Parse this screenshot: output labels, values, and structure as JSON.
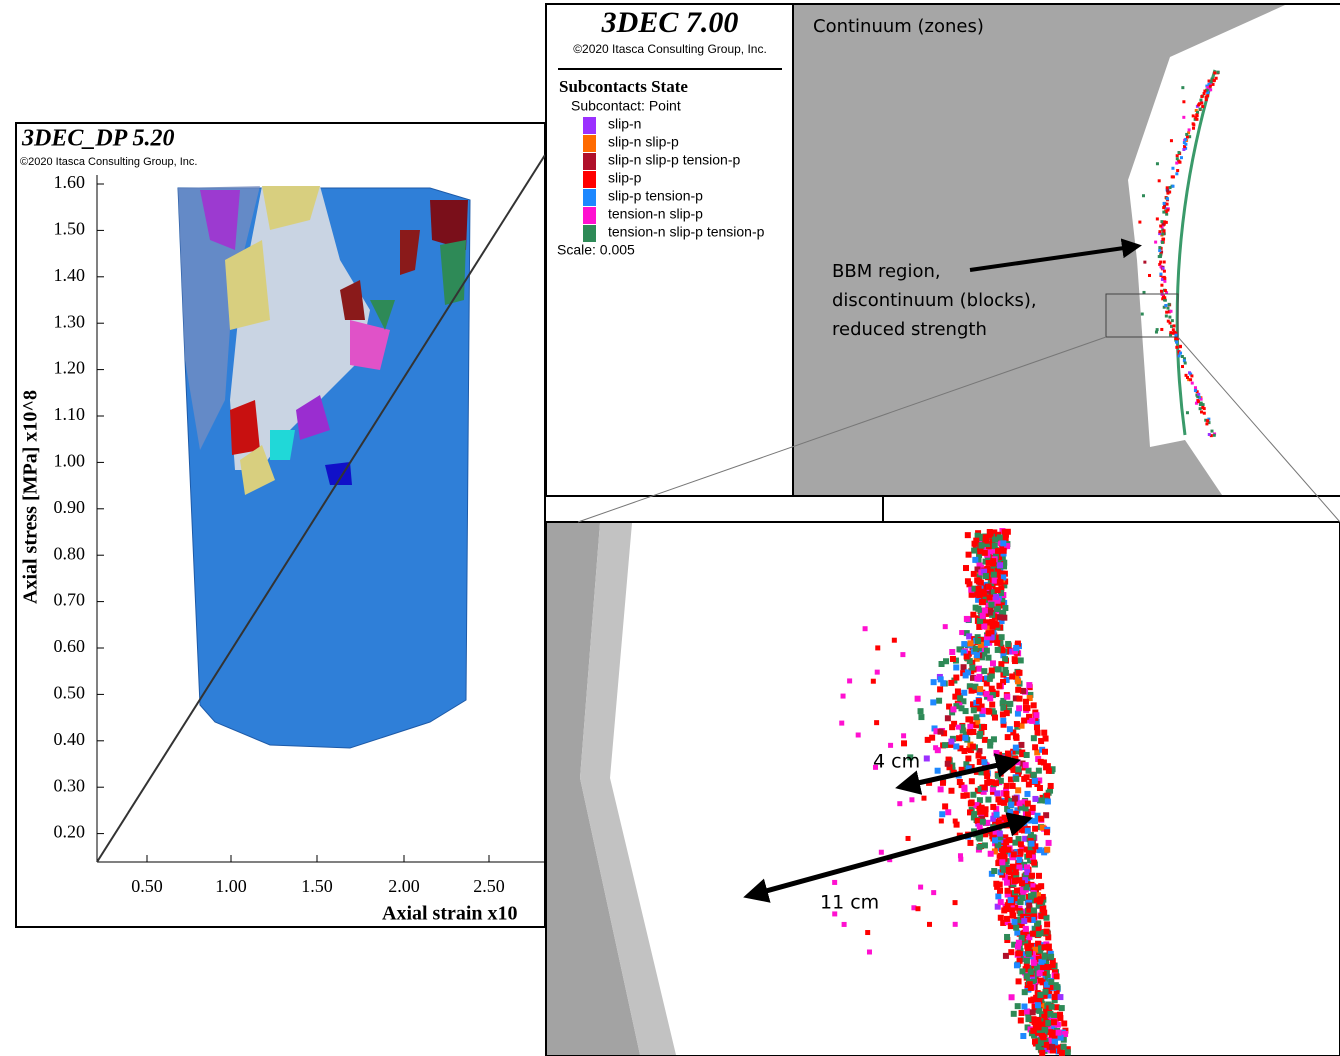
{
  "left_panel": {
    "title": "3DEC_DP 5.20",
    "copyright": "©2020 Itasca Consulting Group, Inc.",
    "y_axis_label": "Axial stress [MPa] x10^8",
    "x_axis_label": "Axial strain x10",
    "y_ticks": [
      "1.60",
      "1.50",
      "1.40",
      "1.30",
      "1.20",
      "1.10",
      "1.00",
      "0.90",
      "0.80",
      "0.70",
      "0.60",
      "0.50",
      "0.40",
      "0.30",
      "0.20"
    ],
    "x_ticks": [
      "0.50",
      "1.00",
      "1.50",
      "2.00",
      "2.50"
    ]
  },
  "top_panel": {
    "title": "3DEC 7.00",
    "copyright": "©2020 Itasca Consulting Group, Inc.",
    "legend_title": "Subcontacts State",
    "legend_subtitle": "Subcontact: Point",
    "legend_items": [
      {
        "label": "slip-n",
        "color": "#9b30ff"
      },
      {
        "label": "slip-n slip-p",
        "color": "#ff6a00"
      },
      {
        "label": "slip-n slip-p tension-p",
        "color": "#b0102a"
      },
      {
        "label": "slip-p",
        "color": "#ff0000"
      },
      {
        "label": "slip-p tension-p",
        "color": "#1e88ff"
      },
      {
        "label": "tension-n slip-p",
        "color": "#ff10d0"
      },
      {
        "label": "tension-n slip-p tension-p",
        "color": "#2e8a57"
      }
    ],
    "scale": "Scale: 0.005",
    "view_label": "Continuum (zones)",
    "annotation": [
      "BBM region,",
      "discontinuum (blocks),",
      "reduced strength"
    ]
  },
  "bottom_panel": {
    "annotations": [
      "4 cm",
      "11 cm"
    ]
  }
}
